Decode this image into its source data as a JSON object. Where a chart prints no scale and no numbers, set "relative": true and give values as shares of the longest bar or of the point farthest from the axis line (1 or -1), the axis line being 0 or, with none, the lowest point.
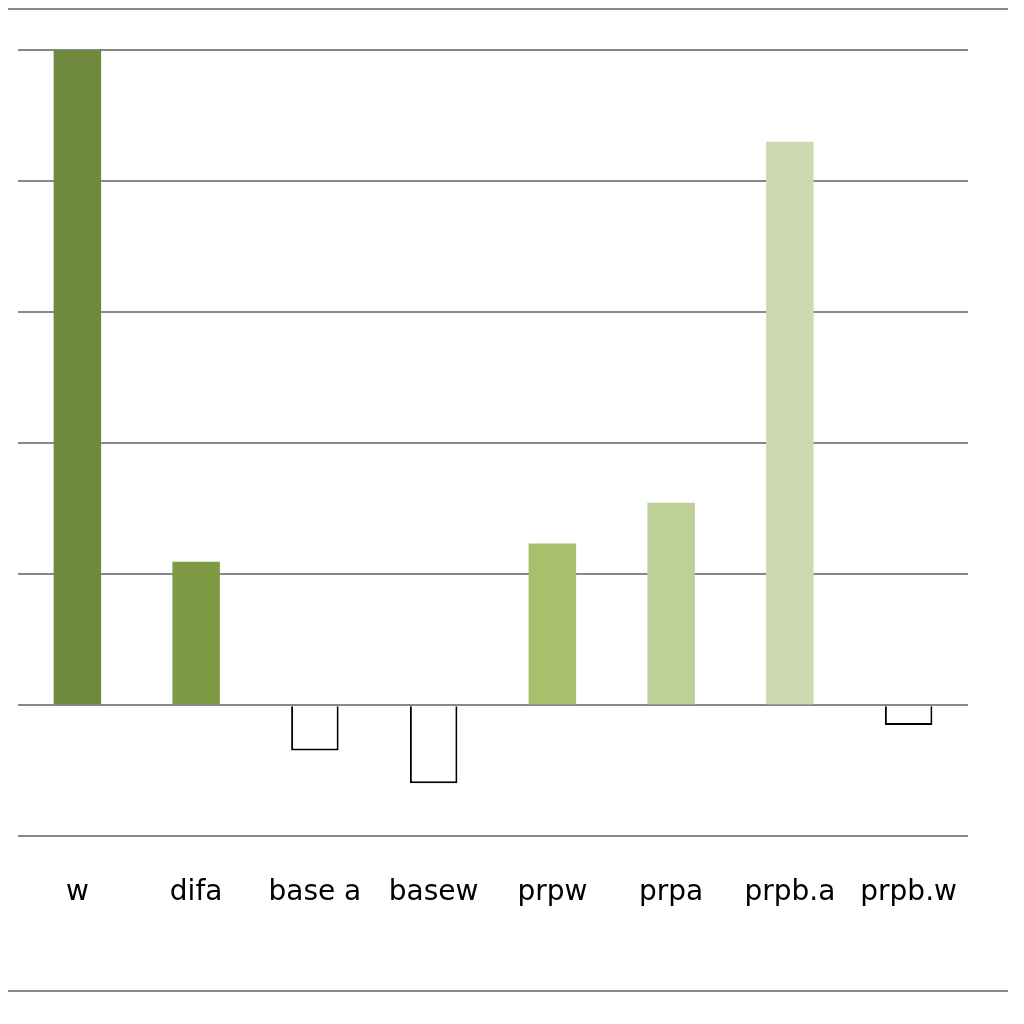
{
  "chart_data": {
    "type": "bar",
    "relative": true,
    "categories": [
      "w",
      "difa",
      "base a",
      "basew",
      "prpw",
      "prpa",
      "prpb.a",
      "prpb.w"
    ],
    "values": [
      1,
      0.219,
      -0.069,
      -0.119,
      0.247,
      0.309,
      0.86,
      -0.03
    ],
    "colors": [
      "#6f8a3c",
      "#7f9a45",
      "#ffffff",
      "#ffffff",
      "#a6c06d",
      "#bdd196",
      "#cdd9b0",
      "#ffffff"
    ],
    "grid": "y",
    "legend": false
  }
}
